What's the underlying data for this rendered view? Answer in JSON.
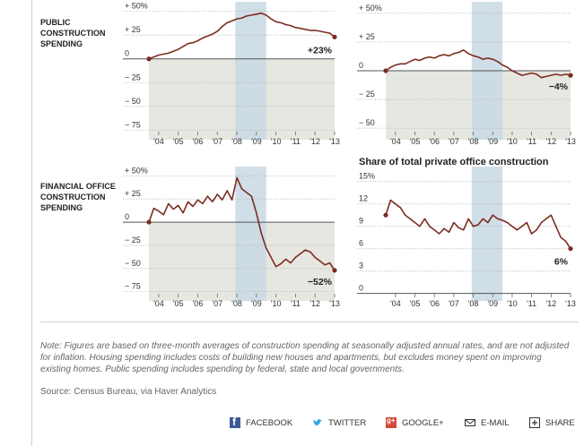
{
  "row_labels": [
    "PUBLIC CONSTRUCTION SPENDING",
    "FINANCIAL OFFICE CONSTRUCTION SPENDING"
  ],
  "colors": {
    "line": "#7b2c22",
    "recession": "#c8d8e3",
    "negative_fill": "#e7e7e1",
    "grid": "#b5b5b5"
  },
  "x_tick_labels": [
    "'04",
    "'05",
    "'06",
    "'07",
    "'08",
    "'09",
    "'10",
    "'11",
    "'12",
    "'13"
  ],
  "recession": {
    "start": 2007.92,
    "end": 2009.5
  },
  "chart_data": [
    {
      "type": "line",
      "title": "",
      "xlabel": "",
      "ylabel": "",
      "xlim": [
        2003.5,
        2013.0
      ],
      "ylim": [
        -85,
        60
      ],
      "yticks": [
        50,
        25,
        0,
        -25,
        -50,
        -75
      ],
      "ytick_labels": [
        "+ 50%",
        "+ 25",
        "0",
        "− 25",
        "− 50",
        "− 75"
      ],
      "shade_below_zero": true,
      "end_label": "+23%",
      "series": [
        {
          "x": [
            2003.5,
            2003.75,
            2004.0,
            2004.25,
            2004.5,
            2004.75,
            2005.0,
            2005.25,
            2005.5,
            2005.75,
            2006.0,
            2006.25,
            2006.5,
            2006.75,
            2007.0,
            2007.25,
            2007.5,
            2007.75,
            2008.0,
            2008.25,
            2008.5,
            2008.75,
            2009.0,
            2009.25,
            2009.5,
            2009.75,
            2010.0,
            2010.25,
            2010.5,
            2010.75,
            2011.0,
            2011.25,
            2011.5,
            2011.75,
            2012.0,
            2012.25,
            2012.5,
            2012.75,
            2013.0
          ],
          "y": [
            0,
            2,
            4,
            5,
            6,
            8,
            10,
            13,
            16,
            17,
            19,
            22,
            24,
            26,
            29,
            34,
            38,
            40,
            42,
            43,
            45,
            46,
            47,
            48,
            46,
            42,
            39,
            38,
            36,
            35,
            33,
            32,
            31,
            30,
            30,
            29,
            28,
            27,
            23
          ]
        }
      ]
    },
    {
      "type": "line",
      "title": "",
      "xlabel": "",
      "ylabel": "",
      "xlim": [
        2003.5,
        2013.0
      ],
      "ylim": [
        -60,
        60
      ],
      "yticks": [
        50,
        25,
        0,
        -25,
        -50
      ],
      "ytick_labels": [
        "+ 50%",
        "+ 25",
        "0",
        "− 25",
        "− 50"
      ],
      "shade_below_zero": true,
      "end_label": "−4%",
      "series": [
        {
          "x": [
            2003.5,
            2003.75,
            2004.0,
            2004.25,
            2004.5,
            2004.75,
            2005.0,
            2005.25,
            2005.5,
            2005.75,
            2006.0,
            2006.25,
            2006.5,
            2006.75,
            2007.0,
            2007.25,
            2007.5,
            2007.75,
            2008.0,
            2008.25,
            2008.5,
            2008.75,
            2009.0,
            2009.25,
            2009.5,
            2009.75,
            2010.0,
            2010.25,
            2010.5,
            2010.75,
            2011.0,
            2011.25,
            2011.5,
            2011.75,
            2012.0,
            2012.25,
            2012.5,
            2012.75,
            2013.0
          ],
          "y": [
            0,
            3,
            5,
            6,
            6,
            8,
            10,
            9,
            11,
            12,
            11,
            13,
            14,
            13,
            15,
            16,
            18,
            15,
            13,
            12,
            10,
            11,
            10,
            8,
            5,
            3,
            0,
            -2,
            -4,
            -3,
            -2,
            -3,
            -6,
            -5,
            -4,
            -3,
            -4,
            -3,
            -4
          ]
        }
      ]
    },
    {
      "type": "line",
      "title": "",
      "xlabel": "",
      "ylabel": "",
      "xlim": [
        2003.5,
        2013.0
      ],
      "ylim": [
        -85,
        60
      ],
      "yticks": [
        50,
        25,
        0,
        -25,
        -50,
        -75
      ],
      "ytick_labels": [
        "+ 50%",
        "+ 25",
        "0",
        "− 25",
        "− 50",
        "− 75"
      ],
      "shade_below_zero": true,
      "end_label": "−52%",
      "series": [
        {
          "x": [
            2003.5,
            2003.75,
            2004.0,
            2004.25,
            2004.5,
            2004.75,
            2005.0,
            2005.25,
            2005.5,
            2005.75,
            2006.0,
            2006.25,
            2006.5,
            2006.75,
            2007.0,
            2007.25,
            2007.5,
            2007.75,
            2008.0,
            2008.25,
            2008.5,
            2008.75,
            2009.0,
            2009.25,
            2009.5,
            2009.75,
            2010.0,
            2010.25,
            2010.5,
            2010.75,
            2011.0,
            2011.25,
            2011.5,
            2011.75,
            2012.0,
            2012.25,
            2012.5,
            2012.75,
            2013.0
          ],
          "y": [
            0,
            15,
            12,
            8,
            20,
            14,
            18,
            10,
            22,
            17,
            24,
            20,
            28,
            22,
            30,
            24,
            34,
            24,
            48,
            36,
            32,
            28,
            10,
            -12,
            -28,
            -38,
            -48,
            -45,
            -40,
            -44,
            -38,
            -34,
            -30,
            -32,
            -38,
            -42,
            -46,
            -44,
            -52
          ]
        }
      ]
    },
    {
      "type": "line",
      "title": "Share of total private office construction",
      "xlabel": "",
      "ylabel": "",
      "xlim": [
        2003.5,
        2013.0
      ],
      "ylim": [
        -1,
        17
      ],
      "yticks": [
        15,
        12,
        9,
        6,
        3,
        0
      ],
      "ytick_labels": [
        "15%",
        "12",
        "9",
        "6",
        "3",
        "0"
      ],
      "shade_below_zero": false,
      "end_label": "6%",
      "series": [
        {
          "x": [
            2003.5,
            2003.75,
            2004.0,
            2004.25,
            2004.5,
            2004.75,
            2005.0,
            2005.25,
            2005.5,
            2005.75,
            2006.0,
            2006.25,
            2006.5,
            2006.75,
            2007.0,
            2007.25,
            2007.5,
            2007.75,
            2008.0,
            2008.25,
            2008.5,
            2008.75,
            2009.0,
            2009.25,
            2009.5,
            2009.75,
            2010.0,
            2010.25,
            2010.5,
            2010.75,
            2011.0,
            2011.25,
            2011.5,
            2011.75,
            2012.0,
            2012.25,
            2012.5,
            2012.75,
            2013.0
          ],
          "y": [
            10.5,
            12.5,
            12,
            11.5,
            10.5,
            10,
            9.5,
            9,
            10,
            9,
            8.5,
            8,
            8.7,
            8.2,
            9.5,
            8.8,
            8.5,
            10,
            9,
            9.2,
            10,
            9.5,
            10.5,
            10,
            9.8,
            9.5,
            9,
            8.5,
            9,
            9.5,
            8,
            8.5,
            9.5,
            10,
            10.5,
            9,
            7.5,
            7,
            6
          ]
        }
      ]
    }
  ],
  "note": "Note: Figures are based on three-month averages of construction spending at seasonally adjusted annual rates, and are not adjusted for inflation. Housing spending includes costs of building new houses and apartments, but excludes money spent on improving existing homes. Public spending includes spending by federal, state and local governments.",
  "source": "Source: Census Bureau, via Haver Analytics",
  "share_bar": {
    "facebook": "FACEBOOK",
    "twitter": "TWITTER",
    "google": "GOOGLE+",
    "email": "E-MAIL",
    "share": "SHARE"
  }
}
